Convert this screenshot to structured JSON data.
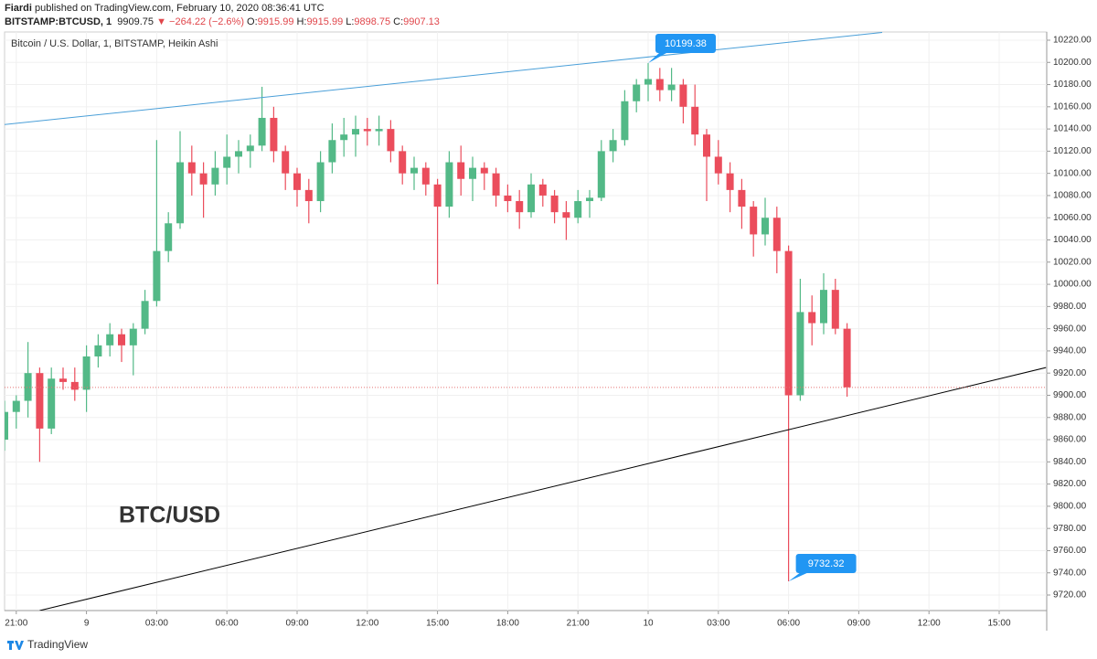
{
  "header": {
    "author": "Fiardi",
    "published": "published on TradingView.com, February 10, 2020 08:36:41 UTC",
    "symbol": "BITSTAMP:BTCUSD, 1",
    "last": "9909.75",
    "change": "▼ −264.22 (−2.6%)",
    "ohlc": [
      {
        "label": "O:",
        "value": "9915.99"
      },
      {
        "label": "H:",
        "value": "9915.99"
      },
      {
        "label": "L:",
        "value": "9898.75"
      },
      {
        "label": "C:",
        "value": "9907.13"
      }
    ]
  },
  "footer": {
    "brand": "TradingView"
  },
  "chart_data": {
    "type": "candlestick",
    "title": "Bitcoin / U.S. Dollar, 1, BITSTAMP, Heikin Ashi",
    "annotation": "BTC/USD",
    "up_color": "#53b987",
    "down_color": "#eb4d5c",
    "grid": true,
    "categories": [
      null,
      "21:00",
      null,
      null,
      null,
      null,
      null,
      "9",
      null,
      null,
      null,
      null,
      null,
      "03:00",
      null,
      null,
      null,
      null,
      null,
      "06:00",
      null,
      null,
      null,
      null,
      null,
      "09:00",
      null,
      null,
      null,
      null,
      null,
      "12:00",
      null,
      null,
      null,
      null,
      null,
      "15:00",
      null,
      null,
      null,
      null,
      null,
      "18:00",
      null,
      null,
      null,
      null,
      null,
      "21:00",
      null,
      null,
      null,
      null,
      null,
      "10",
      null,
      null,
      null,
      null,
      null,
      "03:00",
      null,
      null,
      null,
      null,
      null,
      "06:00",
      null,
      null,
      null,
      null,
      null,
      "09:00",
      null,
      null,
      null,
      null,
      null,
      "12:00",
      null,
      null,
      null,
      null,
      null,
      "15:00",
      null,
      null,
      null,
      null
    ],
    "open": [
      9860,
      9885,
      9895,
      9920,
      9870,
      9915,
      9912,
      9905,
      9935,
      9945,
      9955,
      9945,
      9960,
      9985,
      10030,
      10055,
      10110,
      10100,
      10090,
      10105,
      10115,
      10120,
      10125,
      10150,
      10120,
      10100,
      10085,
      10075,
      10110,
      10130,
      10135,
      10140,
      10138,
      10140,
      10120,
      10100,
      10105,
      10090,
      10070,
      10110,
      10095,
      10105,
      10100,
      10080,
      10075,
      10065,
      10090,
      10080,
      10065,
      10060,
      10075,
      10078,
      10120,
      10130,
      10165,
      10180,
      10185,
      10175,
      10180,
      10160,
      10135,
      10115,
      10100,
      10085,
      10070,
      10045,
      10060,
      10030,
      9900,
      9975,
      9965,
      9995,
      9960,
      null,
      null,
      null,
      null,
      null,
      null,
      null,
      null,
      null,
      null,
      null,
      null,
      null,
      null,
      null,
      null,
      null
    ],
    "high": [
      9895,
      9900,
      9948,
      9925,
      9925,
      9925,
      9925,
      9945,
      9955,
      9965,
      9960,
      9965,
      9995,
      10130,
      10065,
      10138,
      10125,
      10110,
      10120,
      10135,
      10130,
      10135,
      10178,
      10160,
      10125,
      10105,
      10095,
      10120,
      10145,
      10150,
      10152,
      10150,
      10152,
      10148,
      10125,
      10115,
      10110,
      10095,
      10120,
      10125,
      10115,
      10110,
      10105,
      10090,
      10085,
      10100,
      10095,
      10085,
      10075,
      10085,
      10085,
      10130,
      10140,
      10175,
      10185,
      10199.38,
      10195,
      10195,
      10185,
      10180,
      10140,
      10130,
      10110,
      10095,
      10075,
      10078,
      10070,
      10035,
      10005,
      9990,
      10010,
      10005,
      9965,
      null,
      null,
      null,
      null,
      null,
      null,
      null,
      null,
      null,
      null,
      null,
      null,
      null,
      null,
      null,
      null,
      null
    ],
    "low": [
      9850,
      9870,
      9880,
      9840,
      9865,
      9905,
      9895,
      9885,
      9925,
      9935,
      9930,
      9918,
      9955,
      9980,
      10020,
      10050,
      10080,
      10060,
      10080,
      10090,
      10100,
      10105,
      10120,
      10110,
      10085,
      10070,
      10055,
      10065,
      10100,
      10115,
      10115,
      10125,
      10125,
      10110,
      10090,
      10085,
      10080,
      10000,
      10060,
      10080,
      10075,
      10085,
      10070,
      10065,
      10050,
      10060,
      10070,
      10055,
      10040,
      10055,
      10060,
      10075,
      10110,
      10125,
      10155,
      10165,
      10165,
      10165,
      10145,
      10125,
      10075,
      10090,
      10065,
      10050,
      10025,
      10035,
      10010,
      9732.32,
      9895,
      9945,
      9955,
      9955,
      9898.75,
      null,
      null,
      null,
      null,
      null,
      null,
      null,
      null,
      null,
      null,
      null,
      null,
      null,
      null,
      null,
      null,
      null
    ],
    "close": [
      9885,
      9895,
      9920,
      9870,
      9915,
      9912,
      9905,
      9935,
      9945,
      9955,
      9945,
      9960,
      9985,
      10030,
      10055,
      10110,
      10100,
      10090,
      10105,
      10115,
      10120,
      10125,
      10150,
      10120,
      10100,
      10085,
      10075,
      10110,
      10130,
      10135,
      10140,
      10138,
      10140,
      10120,
      10100,
      10105,
      10090,
      10070,
      10110,
      10095,
      10105,
      10100,
      10080,
      10075,
      10065,
      10090,
      10080,
      10065,
      10060,
      10075,
      10078,
      10120,
      10130,
      10165,
      10180,
      10185,
      10175,
      10180,
      10160,
      10135,
      10115,
      10100,
      10085,
      10070,
      10045,
      10060,
      10030,
      9900,
      9975,
      9965,
      9995,
      9960,
      9907.13,
      null,
      null,
      null,
      null,
      null,
      null,
      null,
      null,
      null,
      null,
      null,
      null,
      null,
      null,
      null,
      null,
      null
    ],
    "ylim": [
      9706,
      10227.4
    ],
    "yticks": [
      {
        "value": 9720,
        "label": "9720.00"
      },
      {
        "value": 9740,
        "label": "9740.00"
      },
      {
        "value": 9760,
        "label": "9760.00"
      },
      {
        "value": 9780,
        "label": "9780.00"
      },
      {
        "value": 9800,
        "label": "9800.00"
      },
      {
        "value": 9820,
        "label": "9820.00"
      },
      {
        "value": 9840,
        "label": "9840.00"
      },
      {
        "value": 9860,
        "label": "9860.00"
      },
      {
        "value": 9880,
        "label": "9880.00"
      },
      {
        "value": 9900,
        "label": "9900.00"
      },
      {
        "value": 9920,
        "label": "9920.00"
      },
      {
        "value": 9940,
        "label": "9940.00"
      },
      {
        "value": 9960,
        "label": "9960.00"
      },
      {
        "value": 9980,
        "label": "9980.00"
      },
      {
        "value": 10000,
        "label": "10000.00"
      },
      {
        "value": 10020,
        "label": "10020.00"
      },
      {
        "value": 10040,
        "label": "10040.00"
      },
      {
        "value": 10060,
        "label": "10060.00"
      },
      {
        "value": 10080,
        "label": "10080.00"
      },
      {
        "value": 10100,
        "label": "10100.00"
      },
      {
        "value": 10120,
        "label": "10120.00"
      },
      {
        "value": 10140,
        "label": "10140.00"
      },
      {
        "value": 10160,
        "label": "10160.00"
      },
      {
        "value": 10180,
        "label": "10180.00"
      },
      {
        "value": 10200,
        "label": "10200.00"
      },
      {
        "value": 10220,
        "label": "10220.00"
      }
    ],
    "trendlines": [
      {
        "color": "#4a9fd8",
        "points": [
          [
            0,
            10144
          ],
          [
            75,
            10227
          ]
        ]
      },
      {
        "color": "#000000",
        "points": [
          [
            3,
            9706
          ],
          [
            89,
            9925
          ]
        ]
      }
    ],
    "price_line_color": "#e57373",
    "callout_color": "#2196f3"
  }
}
